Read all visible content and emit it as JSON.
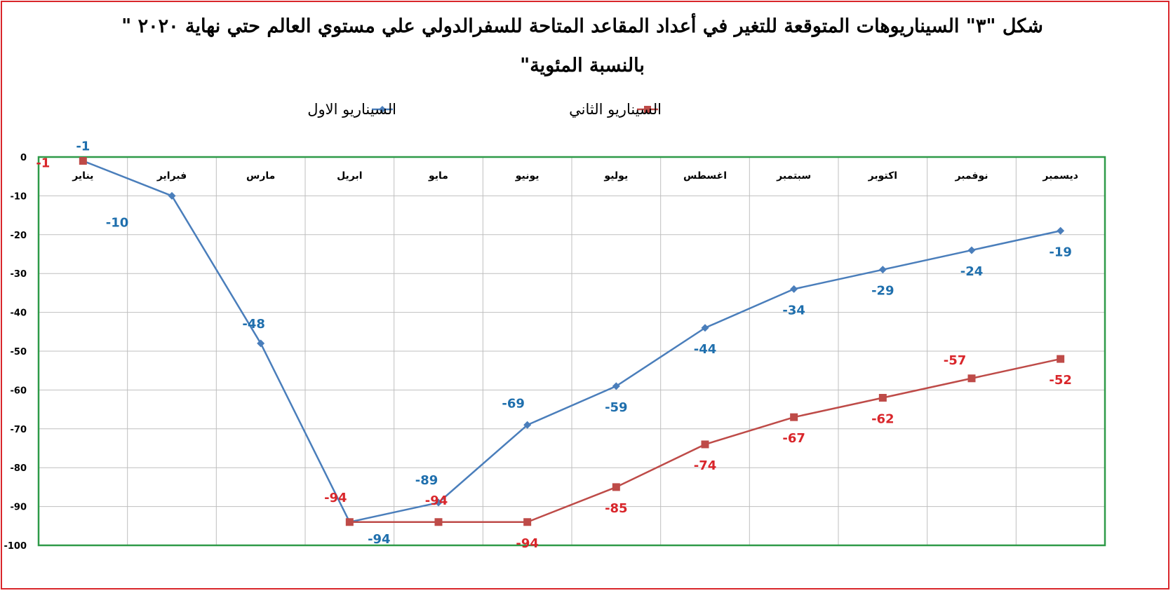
{
  "chart_data": {
    "type": "line",
    "title": "شكل \"٣\" السيناريوهات المتوقعة للتغير في أعداد المقاعد المتاحة للسفرالدولي علي مستوي العالم حتي نهاية ٢٠٢٠ \" بالنسبة المئوية\"",
    "categories": [
      "يناير",
      "فبراير",
      "مارس",
      "ابريل",
      "مايو",
      "يونيو",
      "يوليو",
      "اغسطس",
      "سبتمبر",
      "اكتوبر",
      "نوفمبر",
      "ديسمبر"
    ],
    "series": [
      {
        "name": "السيناريو الاول",
        "color": "#4a7ebb",
        "label_color": "#1f6fad",
        "marker": "diamond",
        "values": [
          -1,
          -10,
          -48,
          -94,
          -89,
          -69,
          -59,
          -44,
          -34,
          -29,
          -24,
          -19
        ]
      },
      {
        "name": "السيناريو الثاني",
        "color": "#be4b48",
        "label_color": "#d9262b",
        "marker": "square",
        "values": [
          -1,
          null,
          null,
          -94,
          -94,
          -94,
          -85,
          -74,
          -67,
          -62,
          -57,
          -52
        ]
      }
    ],
    "ylim": [
      -100,
      0
    ],
    "yticks": [
      0,
      -10,
      -20,
      -30,
      -40,
      -50,
      -60,
      -70,
      -80,
      -90,
      -100
    ],
    "xlabel": "",
    "ylabel": "",
    "grid": true,
    "legend_position": "top"
  }
}
